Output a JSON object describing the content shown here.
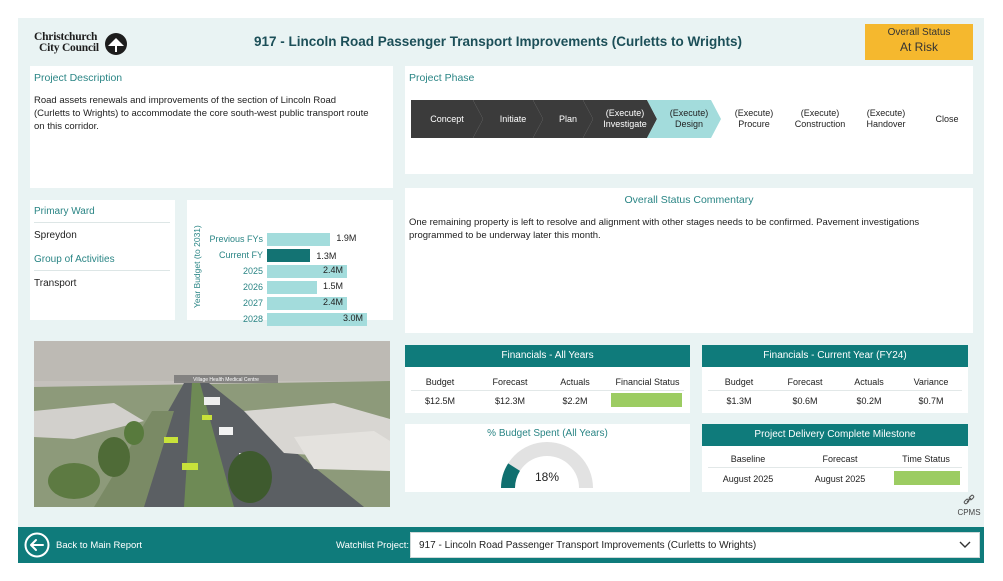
{
  "header": {
    "logo_line1": "Christchurch",
    "logo_line2": "City Council",
    "title": "917 - Lincoln Road Passenger Transport Improvements (Curletts to Wrights)",
    "status_label": "Overall Status",
    "status_value": "At Risk",
    "status_color": "#f5b82e"
  },
  "description": {
    "title": "Project Description",
    "text": "Road assets renewals and improvements of the section of Lincoln Road (Curletts to Wrights) to accommodate the core south-west public transport route on this corridor."
  },
  "phase": {
    "title": "Project Phase",
    "steps": [
      {
        "line1": "Concept",
        "line2": "",
        "state": "done"
      },
      {
        "line1": "Initiate",
        "line2": "",
        "state": "done"
      },
      {
        "line1": "Plan",
        "line2": "",
        "state": "done"
      },
      {
        "line1": "(Execute)",
        "line2": "Investigate",
        "state": "done"
      },
      {
        "line1": "(Execute)",
        "line2": "Design",
        "state": "current"
      },
      {
        "line1": "(Execute)",
        "line2": "Procure",
        "state": "future"
      },
      {
        "line1": "(Execute)",
        "line2": "Construction",
        "state": "future"
      },
      {
        "line1": "(Execute)",
        "line2": "Handover",
        "state": "future"
      },
      {
        "line1": "Close",
        "line2": "",
        "state": "future"
      }
    ]
  },
  "ward": {
    "primary_ward_label": "Primary Ward",
    "primary_ward_value": "Spreydon",
    "group_label": "Group of Activities",
    "group_value": "Transport"
  },
  "budget_chart": {
    "y_axis_label": "Year Budget (to 2031)",
    "chart_data": {
      "type": "bar",
      "orientation": "horizontal",
      "categories": [
        "Previous FYs",
        "Current FY",
        "2025",
        "2026",
        "2027",
        "2028"
      ],
      "values": [
        1.9,
        1.3,
        2.4,
        1.5,
        2.4,
        3.0
      ],
      "value_labels": [
        "1.9M",
        "1.3M",
        "2.4M",
        "1.5M",
        "2.4M",
        "3.0M"
      ],
      "highlight_index": 1,
      "bar_color": "#a3dcdc",
      "highlight_color": "#137373"
    }
  },
  "commentary": {
    "title": "Overall Status Commentary",
    "text": "One remaining property is left to resolve and alignment with other stages needs to be confirmed. Pavement investigations programmed to be underway later this month."
  },
  "fin_all": {
    "title": "Financials - All Years",
    "headers": [
      "Budget",
      "Forecast",
      "Actuals",
      "Financial Status"
    ],
    "values": [
      "$12.5M",
      "$12.3M",
      "$2.2M"
    ],
    "status_color": "#9ccc62"
  },
  "fin_current": {
    "title": "Financials - Current Year (FY24)",
    "headers": [
      "Budget",
      "Forecast",
      "Actuals",
      "Variance"
    ],
    "values": [
      "$1.3M",
      "$0.6M",
      "$0.2M",
      "$0.7M"
    ]
  },
  "gauge": {
    "title": "% Budget Spent (All Years)",
    "value_label": "18%",
    "value": 0.18
  },
  "milestone": {
    "title": "Project Delivery Complete Milestone",
    "headers": [
      "Baseline",
      "Forecast",
      "Time Status"
    ],
    "values": [
      "August 2025",
      "August 2025"
    ],
    "status_color": "#9ccc62"
  },
  "photo": {
    "sign_text": "Village Health Medical Centre"
  },
  "cpms_label": "CPMS",
  "footer": {
    "back_label": "Back to Main Report",
    "watchlist_label": "Watchlist Project:",
    "watchlist_value": "917 - Lincoln Road Passenger Transport Improvements (Curletts to Wrights)"
  }
}
